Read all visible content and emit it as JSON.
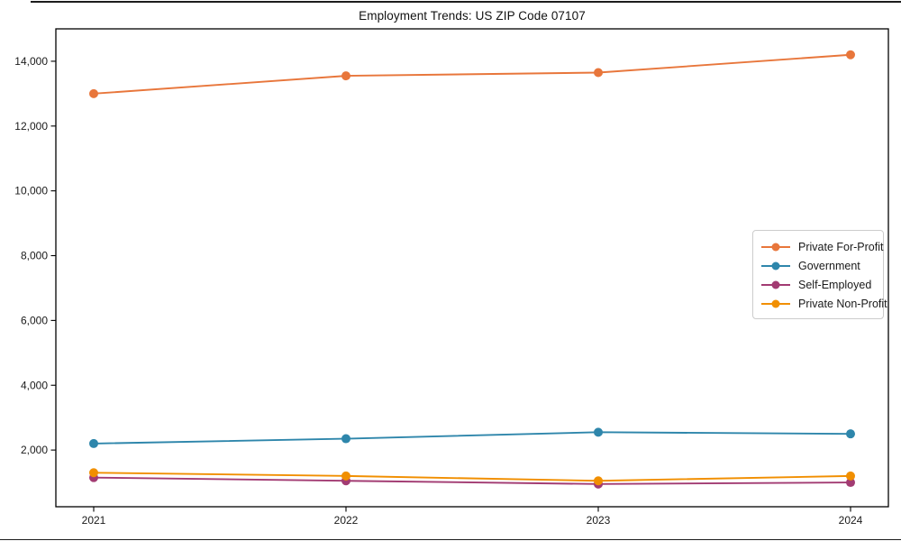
{
  "figure": {
    "title": "Employment Trends: US ZIP Code 07107"
  },
  "chart_data": {
    "type": "line",
    "title": "Employment Trends: US ZIP Code 07107",
    "categories": [
      "2021",
      "2022",
      "2023",
      "2024"
    ],
    "series": [
      {
        "name": "Private For-Profit",
        "color": "#E8763B",
        "values": [
          13000,
          13550,
          13650,
          14200
        ]
      },
      {
        "name": "Government",
        "color": "#2E86AB",
        "values": [
          2200,
          2350,
          2550,
          2500
        ]
      },
      {
        "name": "Self-Employed",
        "color": "#A23B72",
        "values": [
          1150,
          1050,
          950,
          1000
        ]
      },
      {
        "name": "Private Non-Profit",
        "color": "#F18F01",
        "values": [
          1300,
          1200,
          1050,
          1200
        ]
      }
    ],
    "xlabel": "",
    "ylabel": "",
    "ylim": [
      250,
      15000
    ],
    "yticks": [
      2000,
      4000,
      6000,
      8000,
      10000,
      12000,
      14000
    ],
    "ytick_labels": [
      "2,000",
      "4,000",
      "6,000",
      "8,000",
      "10,000",
      "12,000",
      "14,000"
    ],
    "grid": false,
    "legend_position": "center-right",
    "marker": "circle"
  }
}
